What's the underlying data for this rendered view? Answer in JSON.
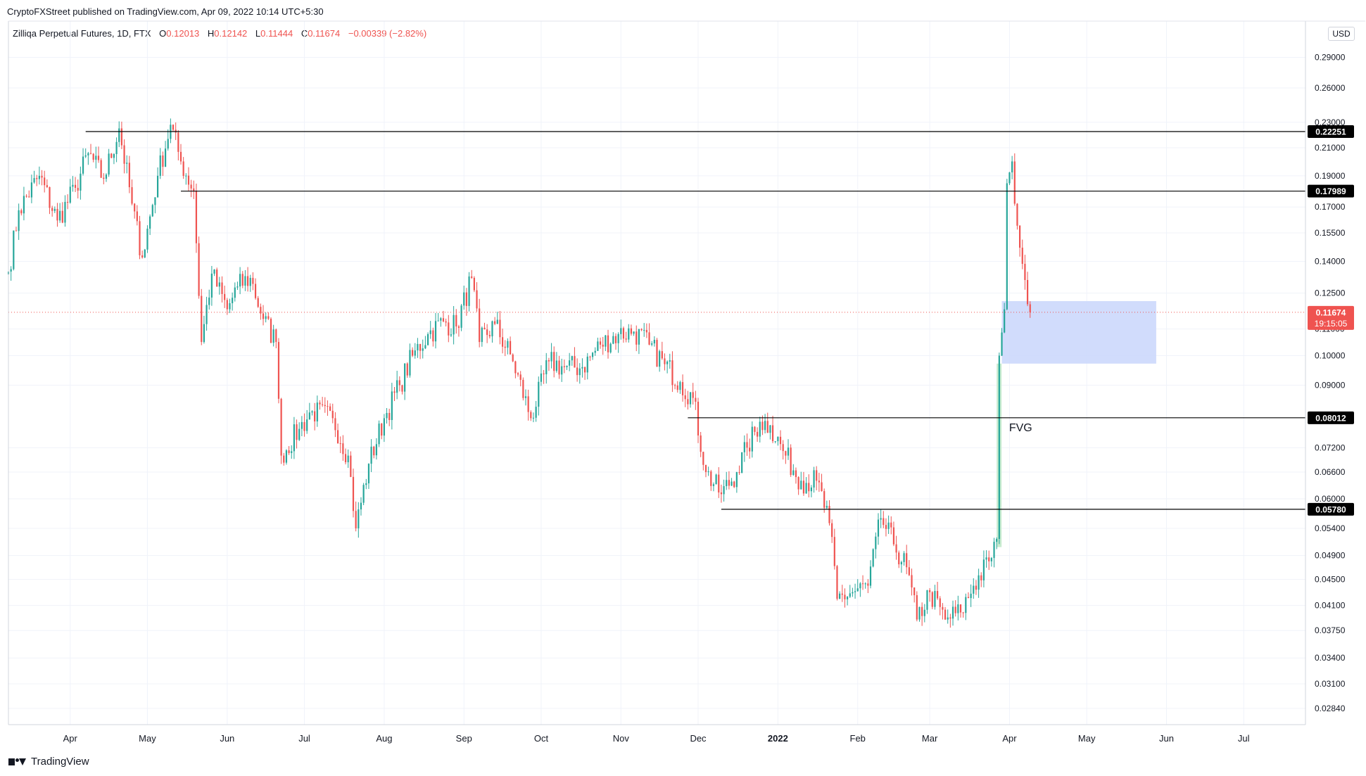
{
  "header": {
    "published_by": "CryptoFXStreet published on TradingView.com, Apr 09, 2022 10:14 UTC+5:30"
  },
  "legend": {
    "symbol": "Zilliqa Perpetual Futures, 1D, FTX",
    "open_label": "O",
    "open": "0.12013",
    "high_label": "H",
    "high": "0.12142",
    "low_label": "L",
    "low": "0.11444",
    "close_label": "C",
    "close": "0.11674",
    "change": "−0.00339 (−2.82%)"
  },
  "currency": "USD",
  "footer": {
    "brand": "TradingView"
  },
  "colors": {
    "up": "#26a69a",
    "down": "#ef5350",
    "grid": "#f0f3fa",
    "level_line": "#000000",
    "zone_fill": "#c9d6fb",
    "fvg_fill": "#c8ebcf",
    "last_price": "#ef5350"
  },
  "chart_data": {
    "type": "candlestick",
    "y_scale": "log",
    "ylim": [
      0.0268,
      0.33
    ],
    "y_ticks": [
      {
        "value": 0.29,
        "label": "0.29000"
      },
      {
        "value": 0.26,
        "label": "0.26000"
      },
      {
        "value": 0.23,
        "label": "0.23000"
      },
      {
        "value": 0.21,
        "label": "0.21000"
      },
      {
        "value": 0.19,
        "label": "0.19000"
      },
      {
        "value": 0.17,
        "label": "0.17000"
      },
      {
        "value": 0.155,
        "label": "0.15500"
      },
      {
        "value": 0.14,
        "label": "0.14000"
      },
      {
        "value": 0.125,
        "label": "0.12500"
      },
      {
        "value": 0.11,
        "label": "0.11000"
      },
      {
        "value": 0.1,
        "label": "0.10000"
      },
      {
        "value": 0.09,
        "label": "0.09000"
      },
      {
        "value": 0.072,
        "label": "0.07200"
      },
      {
        "value": 0.066,
        "label": "0.06600"
      },
      {
        "value": 0.06,
        "label": "0.06000"
      },
      {
        "value": 0.054,
        "label": "0.05400"
      },
      {
        "value": 0.049,
        "label": "0.04900"
      },
      {
        "value": 0.045,
        "label": "0.04500"
      },
      {
        "value": 0.041,
        "label": "0.04100"
      },
      {
        "value": 0.0375,
        "label": "0.03750"
      },
      {
        "value": 0.034,
        "label": "0.03400"
      },
      {
        "value": 0.031,
        "label": "0.03100"
      },
      {
        "value": 0.0284,
        "label": "0.02840"
      }
    ],
    "x_labels": [
      {
        "label": "Apr",
        "date": "2021-04-01",
        "bold": false
      },
      {
        "label": "May",
        "date": "2021-05-01",
        "bold": false
      },
      {
        "label": "Jun",
        "date": "2021-06-01",
        "bold": false
      },
      {
        "label": "Jul",
        "date": "2021-07-01",
        "bold": false
      },
      {
        "label": "Aug",
        "date": "2021-08-01",
        "bold": false
      },
      {
        "label": "Sep",
        "date": "2021-09-01",
        "bold": false
      },
      {
        "label": "Oct",
        "date": "2021-10-01",
        "bold": false
      },
      {
        "label": "Nov",
        "date": "2021-11-01",
        "bold": false
      },
      {
        "label": "Dec",
        "date": "2021-12-01",
        "bold": false
      },
      {
        "label": "2022",
        "date": "2022-01-01",
        "bold": true
      },
      {
        "label": "Feb",
        "date": "2022-02-01",
        "bold": false
      },
      {
        "label": "Mar",
        "date": "2022-03-01",
        "bold": false
      },
      {
        "label": "Apr",
        "date": "2022-04-01",
        "bold": false
      },
      {
        "label": "May",
        "date": "2022-05-01",
        "bold": false
      },
      {
        "label": "Jun",
        "date": "2022-06-01",
        "bold": false
      },
      {
        "label": "Jul",
        "date": "2022-07-01",
        "bold": false
      }
    ],
    "xlim": [
      "2021-03-08",
      "2022-07-25"
    ],
    "levels": [
      {
        "value": 0.22251,
        "label": "0.22251",
        "from": "2021-04-07"
      },
      {
        "value": 0.17989,
        "label": "0.17989",
        "from": "2021-05-14"
      },
      {
        "value": 0.08012,
        "label": "0.08012",
        "from": "2021-11-27"
      },
      {
        "value": 0.0578,
        "label": "0.05780",
        "from": "2021-12-10"
      }
    ],
    "last_price": {
      "value": 0.11674,
      "label": "0.11674",
      "countdown": "19:15:05"
    },
    "zone": {
      "from": "2022-03-29",
      "to": "2022-05-28",
      "top": 0.1215,
      "bottom": 0.0972
    },
    "fvg": {
      "label": "FVG",
      "from": "2022-03-27",
      "to": "2022-03-28",
      "top": 0.0972,
      "bottom": 0.0505
    },
    "anchors": [
      [
        "2021-03-08",
        0.135
      ],
      [
        "2021-03-12",
        0.168
      ],
      [
        "2021-03-20",
        0.19
      ],
      [
        "2021-03-27",
        0.162
      ],
      [
        "2021-04-03",
        0.182
      ],
      [
        "2021-04-08",
        0.206
      ],
      [
        "2021-04-14",
        0.188
      ],
      [
        "2021-04-20",
        0.225
      ],
      [
        "2021-04-25",
        0.172
      ],
      [
        "2021-04-29",
        0.142
      ],
      [
        "2021-05-05",
        0.19
      ],
      [
        "2021-05-10",
        0.228
      ],
      [
        "2021-05-14",
        0.2
      ],
      [
        "2021-05-19",
        0.18
      ],
      [
        "2021-05-22",
        0.105
      ],
      [
        "2021-05-26",
        0.134
      ],
      [
        "2021-06-01",
        0.118
      ],
      [
        "2021-06-05",
        0.128
      ],
      [
        "2021-06-10",
        0.132
      ],
      [
        "2021-06-15",
        0.114
      ],
      [
        "2021-06-20",
        0.105
      ],
      [
        "2021-06-22",
        0.07
      ],
      [
        "2021-06-29",
        0.077
      ],
      [
        "2021-07-04",
        0.082
      ],
      [
        "2021-07-12",
        0.08
      ],
      [
        "2021-07-18",
        0.07
      ],
      [
        "2021-07-21",
        0.054
      ],
      [
        "2021-07-26",
        0.068
      ],
      [
        "2021-08-01",
        0.08
      ],
      [
        "2021-08-07",
        0.09
      ],
      [
        "2021-08-12",
        0.1
      ],
      [
        "2021-08-18",
        0.108
      ],
      [
        "2021-08-24",
        0.113
      ],
      [
        "2021-08-29",
        0.111
      ],
      [
        "2021-09-04",
        0.132
      ],
      [
        "2021-09-07",
        0.105
      ],
      [
        "2021-09-13",
        0.112
      ],
      [
        "2021-09-20",
        0.098
      ],
      [
        "2021-09-27",
        0.08
      ],
      [
        "2021-10-04",
        0.098
      ],
      [
        "2021-10-10",
        0.096
      ],
      [
        "2021-10-17",
        0.096
      ],
      [
        "2021-10-24",
        0.104
      ],
      [
        "2021-10-31",
        0.108
      ],
      [
        "2021-11-06",
        0.109
      ],
      [
        "2021-11-12",
        0.104
      ],
      [
        "2021-11-18",
        0.097
      ],
      [
        "2021-11-24",
        0.091
      ],
      [
        "2021-11-29",
        0.086
      ],
      [
        "2021-12-04",
        0.066
      ],
      [
        "2021-12-10",
        0.061
      ],
      [
        "2021-12-16",
        0.066
      ],
      [
        "2021-12-20",
        0.072
      ],
      [
        "2021-12-25",
        0.079
      ],
      [
        "2021-12-29",
        0.078
      ],
      [
        "2022-01-04",
        0.07
      ],
      [
        "2022-01-10",
        0.064
      ],
      [
        "2022-01-16",
        0.064
      ],
      [
        "2022-01-21",
        0.055
      ],
      [
        "2022-01-24",
        0.042
      ],
      [
        "2022-01-30",
        0.043
      ],
      [
        "2022-02-05",
        0.044
      ],
      [
        "2022-02-10",
        0.056
      ],
      [
        "2022-02-15",
        0.051
      ],
      [
        "2022-02-20",
        0.047
      ],
      [
        "2022-02-24",
        0.039
      ],
      [
        "2022-03-01",
        0.043
      ],
      [
        "2022-03-07",
        0.039
      ],
      [
        "2022-03-13",
        0.04
      ],
      [
        "2022-03-18",
        0.044
      ],
      [
        "2022-03-24",
        0.048
      ],
      [
        "2022-03-27",
        0.052
      ],
      [
        "2022-03-28",
        0.1
      ],
      [
        "2022-03-30",
        0.118
      ],
      [
        "2022-03-31",
        0.185
      ],
      [
        "2022-04-02",
        0.2
      ],
      [
        "2022-04-03",
        0.172
      ],
      [
        "2022-04-05",
        0.147
      ],
      [
        "2022-04-07",
        0.131
      ],
      [
        "2022-04-08",
        0.12013
      ],
      [
        "2022-04-09",
        0.11674
      ]
    ]
  }
}
